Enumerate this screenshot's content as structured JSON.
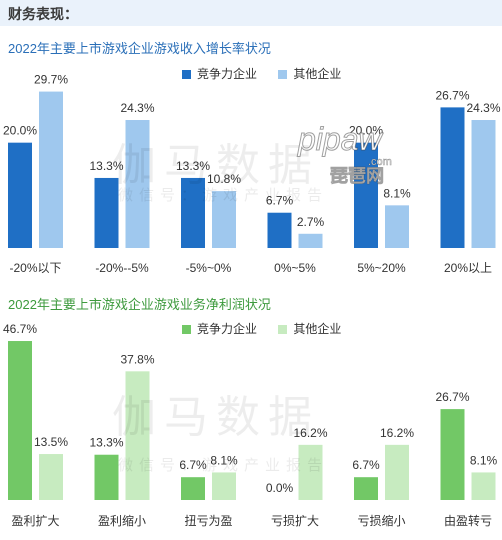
{
  "page": {
    "section_title": "财务表现："
  },
  "colors": {
    "header_bg": "#eaf2fb",
    "chart1_series1": "#1f6fc5",
    "chart1_series2": "#9fc8ee",
    "chart2_series1": "#72c866",
    "chart2_series2": "#c7ebc0"
  },
  "chart_data": [
    {
      "type": "bar",
      "title": "2022年主要上市游戏企业游戏收入增长率状况",
      "categories": [
        "-20%以下",
        "-20%--5%",
        "-5%~0%",
        "0%~5%",
        "5%~20%",
        "20%以上"
      ],
      "series": [
        {
          "name": "竞争力企业",
          "values": [
            20.0,
            13.3,
            13.3,
            6.7,
            20.0,
            26.7
          ],
          "labels": [
            "20.0%",
            "13.3%",
            "13.3%",
            "6.7%",
            "20.0%",
            "26.7%"
          ]
        },
        {
          "name": "其他企业",
          "values": [
            29.7,
            24.3,
            10.8,
            2.7,
            8.1,
            24.3
          ],
          "labels": [
            "29.7%",
            "24.3%",
            "10.8%",
            "2.7%",
            "8.1%",
            "24.3%"
          ]
        }
      ],
      "ylim": [
        0,
        30
      ],
      "grid": false,
      "legend": "top-right"
    },
    {
      "type": "bar",
      "title": "2022年主要上市游戏企业游戏业务净利润状况",
      "categories": [
        "盈利扩大",
        "盈利缩小",
        "扭亏为盈",
        "亏损扩大",
        "亏损缩小",
        "由盈转亏"
      ],
      "series": [
        {
          "name": "竞争力企业",
          "values": [
            46.7,
            13.3,
            6.7,
            0.0,
            6.7,
            26.7
          ],
          "labels": [
            "46.7%",
            "13.3%",
            "6.7%",
            "0.0%",
            "6.7%",
            "26.7%"
          ]
        },
        {
          "name": "其他企业",
          "values": [
            13.5,
            37.8,
            8.1,
            16.2,
            16.2,
            8.1
          ],
          "labels": [
            "13.5%",
            "37.8%",
            "8.1%",
            "16.2%",
            "16.2%",
            "8.1%"
          ]
        }
      ],
      "ylim": [
        0,
        47
      ],
      "grid": false,
      "legend": "top-right"
    }
  ],
  "watermarks": {
    "brand": "伽马数据",
    "sub": "微信号：游戏产业报告",
    "logo_top": "pipaw",
    "logo_mid": ".com",
    "logo_cn": "琵琶网"
  }
}
